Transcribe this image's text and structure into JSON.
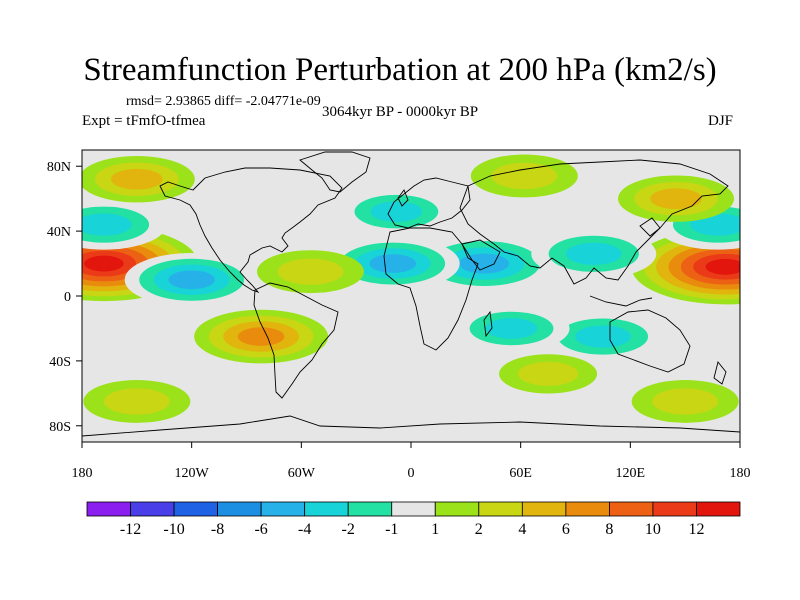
{
  "title": "Streamfunction Perturbation at 200 hPa (km2/s)",
  "stats": "rmsd= 2.93865 diff= -2.04771e-09",
  "experiment": "Expt = tFmfO-tfmea",
  "period": "3064kyr BP - 0000kyr BP",
  "season": "DJF",
  "chart_data": {
    "type": "heatmap",
    "projection": "cylindrical-equidistant",
    "x_ticks": [
      {
        "value": -180,
        "label": "180"
      },
      {
        "value": -120,
        "label": "120W"
      },
      {
        "value": -60,
        "label": "60W"
      },
      {
        "value": 0,
        "label": "0"
      },
      {
        "value": 60,
        "label": "60E"
      },
      {
        "value": 120,
        "label": "120E"
      },
      {
        "value": 180,
        "label": "180"
      }
    ],
    "y_ticks": [
      {
        "value": 80,
        "label": "80N"
      },
      {
        "value": 40,
        "label": "40N"
      },
      {
        "value": 0,
        "label": "0"
      },
      {
        "value": -40,
        "label": "40S"
      },
      {
        "value": -80,
        "label": "80S"
      }
    ],
    "xlim": [
      -180,
      180
    ],
    "ylim": [
      -90,
      90
    ],
    "colorbar": {
      "labels": [
        "-12",
        "-10",
        "-8",
        "-6",
        "-4",
        "-2",
        "-1",
        "1",
        "2",
        "4",
        "6",
        "8",
        "10",
        "12"
      ],
      "colors": [
        "#8a1ff0",
        "#4a3ee8",
        "#1f62e3",
        "#1c8fe3",
        "#26b1e8",
        "#18d3d8",
        "#22e1a3",
        "#e6e6e6",
        "#9be21b",
        "#c8d614",
        "#e1b40e",
        "#e98c0e",
        "#ec6114",
        "#eb3a17",
        "#e3160e"
      ]
    },
    "anomaly_centers": [
      {
        "lon": -168,
        "lat": 20,
        "value": 12
      },
      {
        "lon": 172,
        "lat": 18,
        "value": 12
      },
      {
        "lon": 40,
        "lat": 20,
        "value": -7
      },
      {
        "lon": -10,
        "lat": 20,
        "value": -6
      },
      {
        "lon": -120,
        "lat": 10,
        "value": -6
      },
      {
        "lon": 100,
        "lat": 26,
        "value": -5
      },
      {
        "lon": -8,
        "lat": 52,
        "value": -4
      },
      {
        "lon": -168,
        "lat": 44,
        "value": -5
      },
      {
        "lon": 168,
        "lat": 44,
        "value": -5
      },
      {
        "lon": 105,
        "lat": -25,
        "value": -5
      },
      {
        "lon": 55,
        "lat": -20,
        "value": -4
      },
      {
        "lon": -82,
        "lat": -25,
        "value": 6
      },
      {
        "lon": -150,
        "lat": -65,
        "value": 3
      },
      {
        "lon": 150,
        "lat": -65,
        "value": 3
      },
      {
        "lon": -150,
        "lat": 72,
        "value": 4
      },
      {
        "lon": 145,
        "lat": 60,
        "value": 4
      },
      {
        "lon": 62,
        "lat": 74,
        "value": 3
      },
      {
        "lon": -55,
        "lat": 15,
        "value": 3
      },
      {
        "lon": 75,
        "lat": -48,
        "value": 2
      }
    ]
  }
}
